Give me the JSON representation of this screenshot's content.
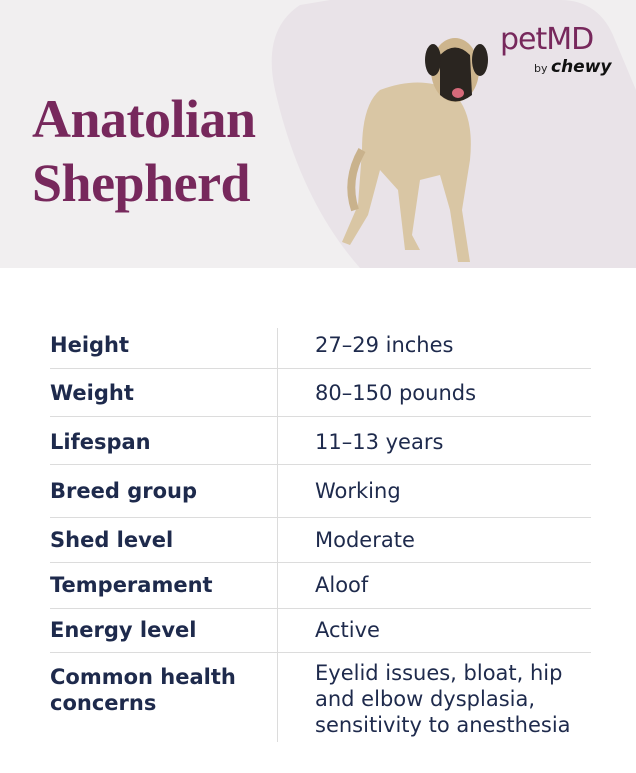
{
  "header": {
    "title_lines": [
      "Anatolian",
      "Shepherd"
    ],
    "logo": {
      "brand": "petMD",
      "by": "by",
      "partner": "chewy"
    }
  },
  "table": {
    "rows": [
      [
        "Height",
        "27–29 inches"
      ],
      [
        "Weight",
        "80–150 pounds"
      ],
      [
        "Lifespan",
        "11–13 years"
      ],
      [
        "Breed group",
        "Working"
      ],
      [
        "Shed level",
        "Moderate"
      ],
      [
        "Temperament",
        "Aloof"
      ],
      [
        "Energy level",
        "Active"
      ],
      [
        "Common health concerns",
        "Eyelid issues, bloat, hip and elbow dysplasia, sensitivity to anesthesia"
      ]
    ]
  }
}
